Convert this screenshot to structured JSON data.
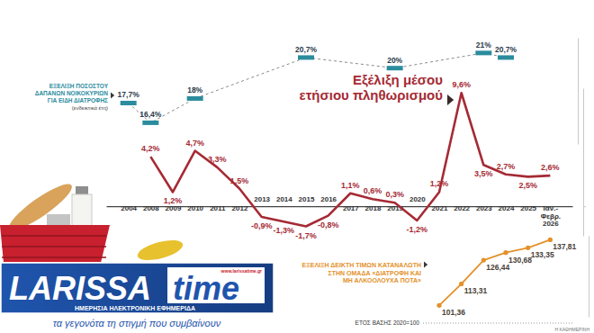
{
  "chart_data": [
    {
      "type": "line",
      "title": "Εξέλιξη μέσου\nετήσιου πληθωρισμού",
      "source": "Η ΚΑΘΗΜΕΡΙΝΗ",
      "categories": [
        "2004",
        "2008",
        "2009",
        "2010",
        "2011",
        "2012",
        "2013",
        "2014",
        "2015",
        "2016",
        "2017",
        "2018",
        "2019",
        "2020",
        "2021",
        "2022",
        "2023",
        "2024",
        "2025",
        "Ιαν.-Φεβρ. 2026"
      ],
      "values": [
        null,
        4.2,
        1.2,
        4.7,
        3.3,
        1.5,
        -0.9,
        -1.3,
        -1.7,
        -0.8,
        1.1,
        0.6,
        0.3,
        -1.2,
        1.2,
        9.6,
        3.5,
        2.7,
        2.5,
        2.6
      ],
      "value_labels": [
        null,
        "4,2%",
        "1,2%",
        "4,7%",
        "3,3%",
        "1,5%",
        "-0,9%",
        "-1,3%",
        "-1,7%",
        "-0,8%",
        "1,1%",
        "0,6%",
        "0,3%",
        "-1,2%",
        "1,2%",
        "9,6%",
        "3,5%",
        "2,7%",
        "2,5%",
        "2,6%"
      ],
      "color": "#a52a34",
      "marker": "none",
      "line_style": "solid",
      "data_labels": true,
      "ylim": [
        -2.5,
        10
      ],
      "yticks": [
        0
      ],
      "tick_labels": "x"
    },
    {
      "type": "line",
      "title": "ΕΞΕΛΙΞΗ ΠΟΣΟΣΤΟΥ\nΔΑΠΑΝΩΝ ΝΟΙΚΟΚΥΡΙΩΝ\nΓΙΑ ΕΙΔΗ ΔΙΑΤΡΟΦΗΣ",
      "subtitle": "(ενδεικτικά έτη)",
      "categories": [
        "2004",
        "2008",
        "2010",
        "2015",
        "2019",
        "2023",
        "2024"
      ],
      "values": [
        17.7,
        16.4,
        18,
        20.7,
        20,
        21,
        20.7
      ],
      "value_labels": [
        "17,7%",
        "16,4%",
        "18%",
        "20,7%",
        "20%",
        "21%",
        "20,7%"
      ],
      "color": "#2b8c9e",
      "marker": "bar",
      "line_style": "dashed",
      "data_labels": true,
      "ylim": [
        15,
        22
      ],
      "yticks": [],
      "tick_labels": false
    },
    {
      "type": "line",
      "title": "ΕΞΕΛΙΞΗ ΔΕΙΚΤΗ ΤΙΜΩΝ ΚΑΤΑΝΑΛΩΤΗ\nΣΤΗΝ ΟΜΑΔΑ «ΔΙΑΤΡΟΦΗ ΚΑΙ\nΜΗ ΑΛΚΟΟΛΟΥΧΑ ΠΟΤΑ»",
      "annotations": [
        "ΕΤΟΣ ΒΑΣΗΣ 2020=100"
      ],
      "categories": [
        "2021",
        "2022",
        "2023",
        "2024",
        "2025",
        "Ιαν.-Φεβρ. 2026"
      ],
      "values": [
        101.36,
        113.31,
        126.44,
        130.68,
        133.35,
        137.81
      ],
      "value_labels": [
        "101,36",
        "113,31",
        "126,44",
        "130,68",
        "133,35",
        "137,81"
      ],
      "color": "#e3912a",
      "marker": "circle",
      "line_style": "solid",
      "data_labels": true,
      "ylim": [
        95,
        140
      ],
      "yticks": [],
      "tick_labels": false
    }
  ],
  "logo": {
    "name_left": "LARISSA",
    "name_right": "time",
    "url": "www.larissatime.gr",
    "tagline": "ΗΜΕΡΗΣΙΑ ΗΛΕΚΤΡΟΝΙΚΗ ΕΦΗΜΕΡΙΔΑ",
    "motto": "τα γεγονότα τη στιγμή που συμβαίνουν"
  }
}
